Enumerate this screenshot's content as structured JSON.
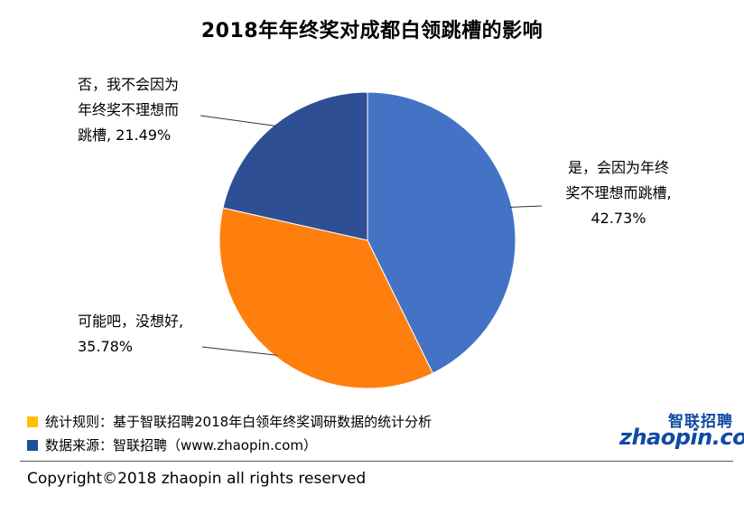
{
  "title": "2018年年终奖对成都白领跳槽的影响",
  "chart_data": {
    "type": "pie",
    "slices": [
      {
        "label_lines": [
          "是，会因为年终",
          "奖不理想而跳槽,",
          "42.73%"
        ],
        "value": 42.73,
        "color": "#4472c4"
      },
      {
        "label_lines": [
          "可能吧，没想好,",
          "35.78%"
        ],
        "value": 35.78,
        "color": "#ff7f0e"
      },
      {
        "label_lines": [
          "否，我不会因为",
          "年终奖不理想而",
          "跳槽, 21.49%"
        ],
        "value": 21.49,
        "color": "#2e4f94"
      }
    ]
  },
  "notes": [
    {
      "text": "统计规则：基于智联招聘2018年白领年终奖调研数据的统计分析",
      "color": "#ffc000"
    },
    {
      "text": "数据来源：智联招聘（www.zhaopin.com）",
      "color": "#1f4e9c"
    }
  ],
  "logo": {
    "cn": "智联招聘",
    "en": "zhaopin.com"
  },
  "copyright": "Copyright©2018 zhaopin all rights reserved"
}
